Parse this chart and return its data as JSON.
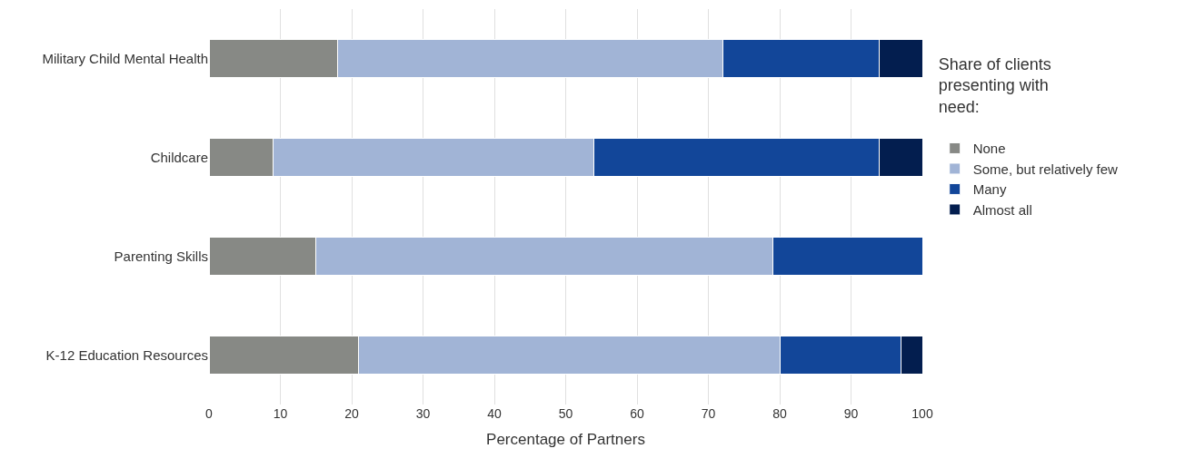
{
  "chart_data": {
    "type": "bar",
    "orientation": "horizontal",
    "stacked": true,
    "categories": [
      "Military Child Mental Health",
      "Childcare",
      "Parenting Skills",
      "K-12 Education Resources"
    ],
    "series": [
      {
        "name": "None",
        "color": "#878985",
        "values": [
          18,
          9,
          15,
          21
        ]
      },
      {
        "name": "Some, but relatively few",
        "color": "#a1b4d6",
        "values": [
          54,
          45,
          64,
          59
        ]
      },
      {
        "name": "Many",
        "color": "#124699",
        "values": [
          22,
          40,
          21,
          17
        ]
      },
      {
        "name": "Almost all",
        "color": "#031e4f",
        "values": [
          6,
          6,
          null,
          3
        ]
      }
    ],
    "xlabel": "Percentage of Partners",
    "legend_title": "Share of clients presenting with need:",
    "xlim": [
      0,
      100
    ],
    "xticks": [
      0,
      10,
      20,
      30,
      40,
      50,
      60,
      70,
      80,
      90,
      100
    ],
    "grid": "x",
    "legend": "right"
  }
}
